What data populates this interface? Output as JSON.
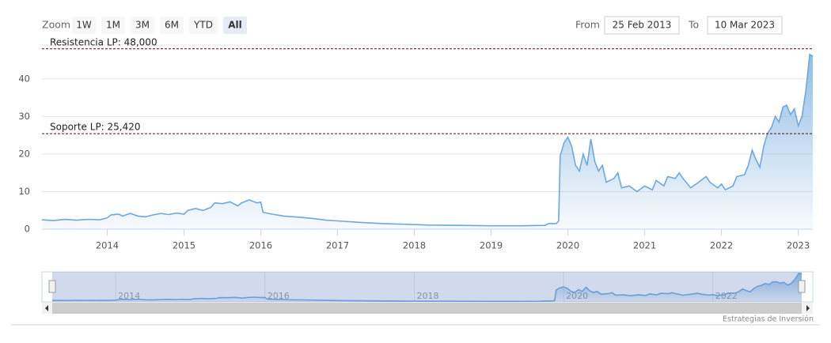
{
  "toolbar": {
    "zoom_label": "Zoom",
    "buttons": [
      "1W",
      "1M",
      "3M",
      "6M",
      "YTD",
      "All"
    ],
    "active_button": 5,
    "from_label": "From",
    "from_value": "25 Feb 2013",
    "to_label": "To",
    "to_value": "10 Mar 2023"
  },
  "chart_data": {
    "type": "area",
    "color": "#6fa8dc",
    "grid": true,
    "x": [
      2013.15,
      2013.3,
      2013.45,
      2013.6,
      2013.75,
      2013.9,
      2014.0,
      2014.05,
      2014.15,
      2014.2,
      2014.3,
      2014.4,
      2014.5,
      2014.6,
      2014.7,
      2014.8,
      2014.9,
      2015.0,
      2015.05,
      2015.15,
      2015.25,
      2015.35,
      2015.4,
      2015.5,
      2015.6,
      2015.7,
      2015.75,
      2015.85,
      2015.95,
      2016.0,
      2016.03,
      2016.15,
      2016.3,
      2016.5,
      2016.7,
      2016.85,
      2017.0,
      2017.3,
      2017.6,
      2017.9,
      2018.2,
      2018.6,
      2019.0,
      2019.4,
      2019.7,
      2019.75,
      2019.85,
      2019.88,
      2019.9,
      2019.95,
      2020.0,
      2020.05,
      2020.1,
      2020.15,
      2020.2,
      2020.25,
      2020.3,
      2020.35,
      2020.4,
      2020.45,
      2020.5,
      2020.6,
      2020.65,
      2020.7,
      2020.8,
      2020.9,
      2021.0,
      2021.1,
      2021.15,
      2021.25,
      2021.3,
      2021.4,
      2021.45,
      2021.5,
      2021.6,
      2021.7,
      2021.8,
      2021.85,
      2021.95,
      2022.0,
      2022.05,
      2022.15,
      2022.2,
      2022.3,
      2022.35,
      2022.4,
      2022.45,
      2022.5,
      2022.55,
      2022.6,
      2022.65,
      2022.7,
      2022.75,
      2022.8,
      2022.85,
      2022.9,
      2022.95,
      2023.0,
      2023.05,
      2023.1,
      2023.15,
      2023.19
    ],
    "values": [
      2.5,
      2.3,
      2.6,
      2.4,
      2.6,
      2.5,
      3.0,
      3.8,
      4.0,
      3.5,
      4.2,
      3.5,
      3.3,
      3.8,
      4.2,
      3.9,
      4.3,
      4.0,
      5.0,
      5.5,
      5.0,
      5.8,
      7.0,
      6.8,
      7.3,
      6.2,
      7.0,
      7.8,
      7.0,
      7.2,
      4.5,
      4.0,
      3.5,
      3.2,
      2.8,
      2.4,
      2.2,
      1.8,
      1.5,
      1.3,
      1.1,
      1.0,
      0.9,
      0.9,
      1.0,
      1.5,
      1.5,
      2.2,
      19.5,
      23.0,
      24.5,
      22.0,
      17.0,
      15.5,
      20.0,
      17.0,
      24.0,
      18.0,
      15.5,
      17.0,
      12.5,
      13.5,
      15.0,
      11.0,
      11.5,
      10.0,
      11.5,
      10.5,
      13.0,
      11.5,
      14.0,
      13.5,
      15.0,
      13.5,
      11.0,
      12.5,
      14.0,
      12.5,
      11.0,
      12.0,
      10.5,
      11.5,
      14.0,
      14.5,
      17.0,
      21.0,
      18.5,
      16.5,
      22.0,
      25.5,
      27.0,
      30.0,
      28.5,
      32.5,
      33.0,
      30.5,
      32.0,
      27.5,
      30.0,
      37.0,
      46.5,
      46.0
    ],
    "xlim": [
      2013.15,
      2023.19
    ],
    "xticks": [
      2014,
      2015,
      2016,
      2017,
      2018,
      2019,
      2020,
      2021,
      2022,
      2023
    ],
    "ylim": [
      0,
      49
    ],
    "yticks": [
      0,
      10,
      20,
      30,
      40
    ],
    "plot_lines": [
      {
        "value": 48,
        "label": "Resistencia LP: 48,000",
        "color": "#5a0a0a"
      },
      {
        "value": 25.42,
        "label": "Soporte LP: 25,420",
        "color": "#5a0a0a"
      }
    ],
    "navigator_xticks": [
      2014,
      2016,
      2018,
      2020,
      2022
    ]
  },
  "credit": "Estrategias de Inversión"
}
